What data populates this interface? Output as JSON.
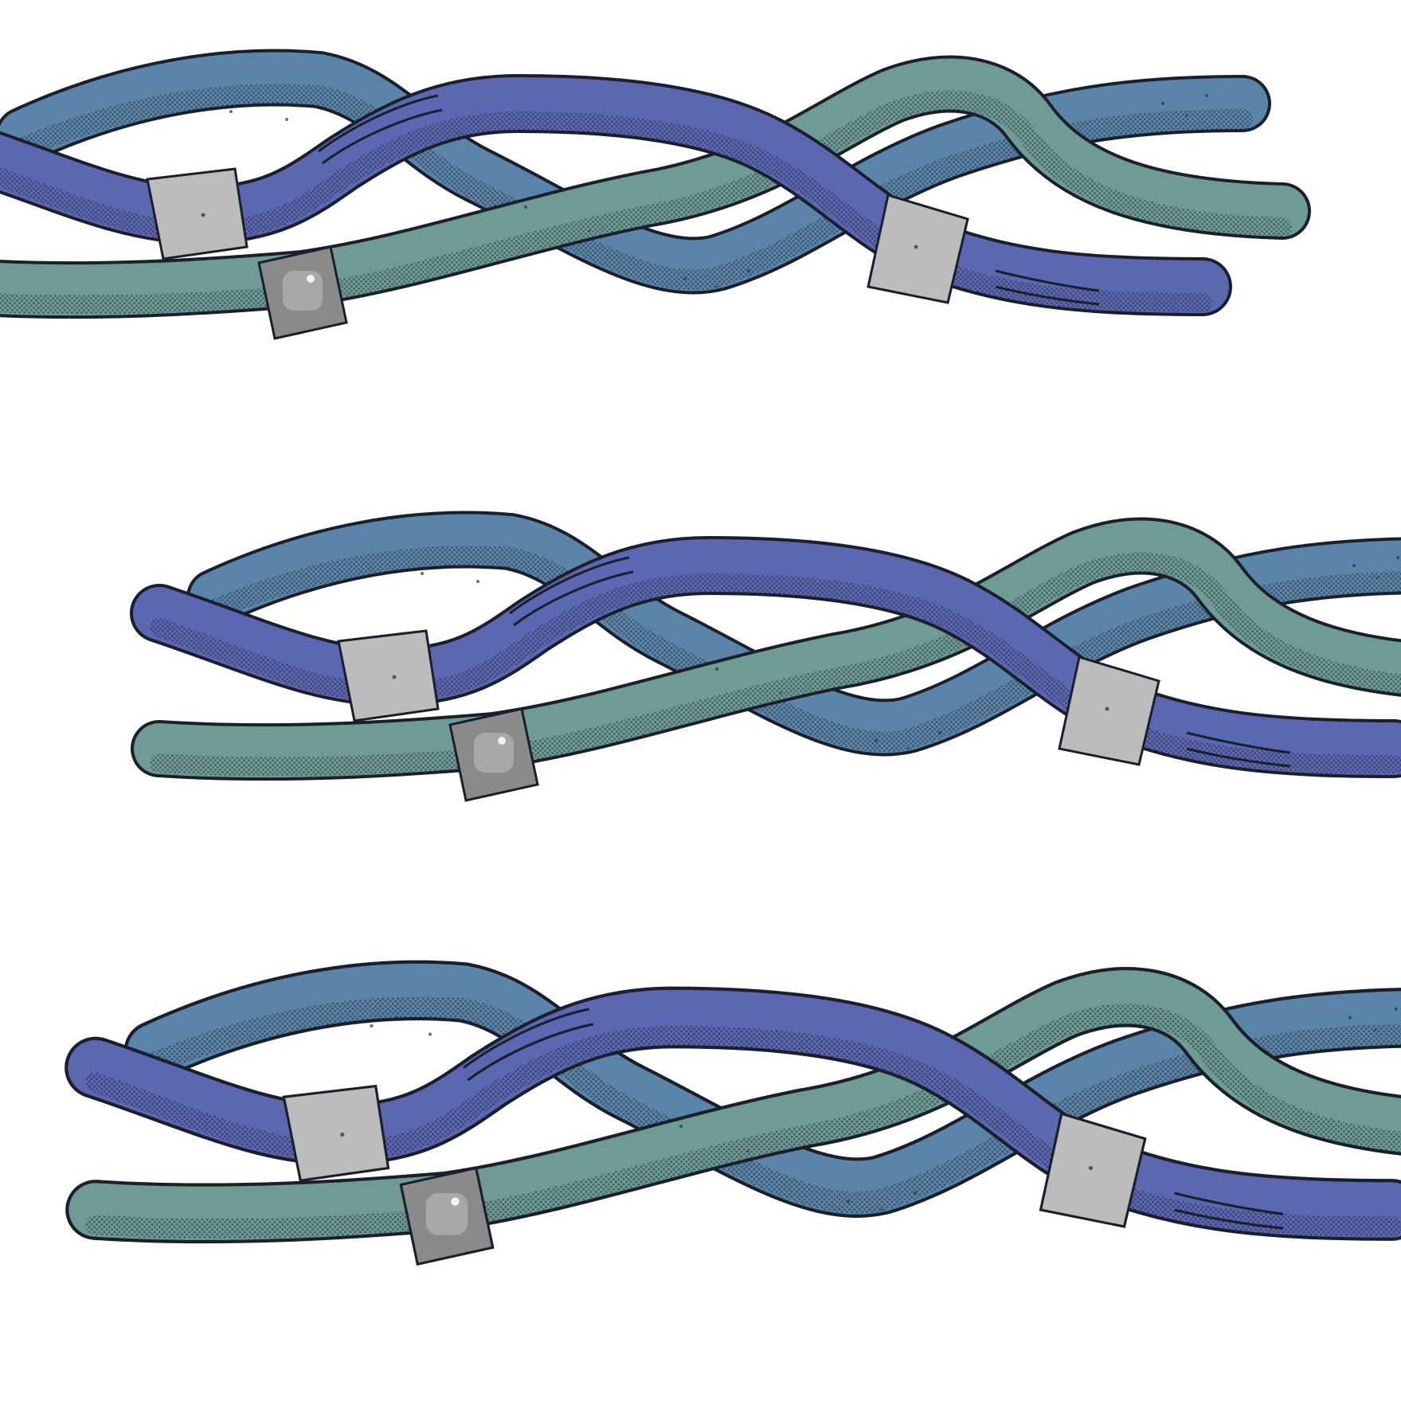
{
  "illustration": {
    "subject": "braided-cables",
    "rows": 3,
    "colors": {
      "background": "#ffffff",
      "outline": "#1a1f2b",
      "indigo_cable": "#5b67b1",
      "indigo_shadow": "#3c4585",
      "steel_blue_cable": "#5b84a9",
      "steel_blue_shadow": "#3f5f80",
      "teal_cable": "#6e9b96",
      "teal_shadow": "#4a706c",
      "band_light": "#bcbcbc",
      "band_dark": "#8a8a8a",
      "speckle": "#2b3344"
    }
  }
}
